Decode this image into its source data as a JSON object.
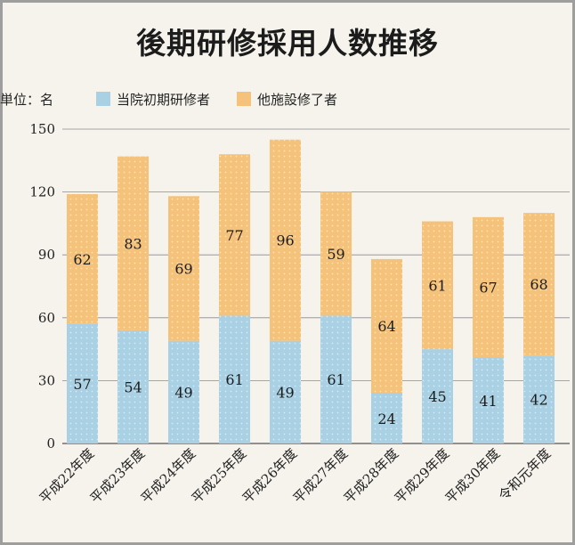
{
  "title": "後期研修採用人数推移",
  "unit_label": "単位：名",
  "colors": {
    "series1": "#a9d0e3",
    "series2": "#f4c27a",
    "grid": "#8c8c8c",
    "axis": "#555555"
  },
  "chart_data": {
    "type": "bar",
    "stacked": true,
    "categories": [
      "平成22年度",
      "平成23年度",
      "平成24年度",
      "平成25年度",
      "平成26年度",
      "平成27年度",
      "平成28年度",
      "平成29年度",
      "平成30年度",
      "令和元年度"
    ],
    "series": [
      {
        "name": "当院初期研修者",
        "values": [
          57,
          54,
          49,
          61,
          49,
          61,
          24,
          45,
          41,
          42
        ]
      },
      {
        "name": "他施設修了者",
        "values": [
          62,
          83,
          69,
          77,
          96,
          59,
          64,
          61,
          67,
          68
        ]
      }
    ],
    "ylim": [
      0,
      150
    ],
    "yticks": [
      0,
      30,
      60,
      90,
      120,
      150
    ],
    "grid": true,
    "legend_position": "top"
  }
}
